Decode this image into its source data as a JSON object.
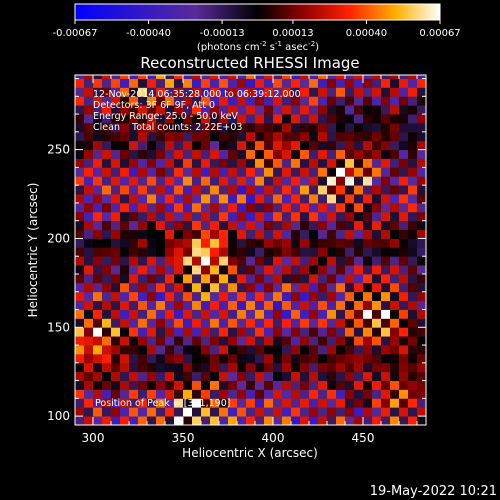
{
  "colorbar": {
    "ticks": [
      {
        "value": -0.00067,
        "label": "-0.00067"
      },
      {
        "value": -0.0004,
        "label": "-0.00040"
      },
      {
        "value": -0.00013,
        "label": "-0.00013"
      },
      {
        "value": 0.00013,
        "label": "0.00013"
      },
      {
        "value": 0.0004,
        "label": "0.00040"
      },
      {
        "value": 0.00067,
        "label": "0.00067"
      }
    ],
    "range": [
      -0.00067,
      0.00067
    ]
  },
  "chart_data": {
    "type": "heatmap",
    "title": "Reconstructed RHESSI Image",
    "xlabel": "Heliocentric X (arcsec)",
    "ylabel": "Heliocentric Y (arcsec)",
    "xlim": [
      290,
      485
    ],
    "ylim": [
      95,
      292
    ],
    "xticks": [
      300,
      350,
      400,
      450
    ],
    "yticks": [
      100,
      150,
      200,
      250
    ],
    "grid": false,
    "annotations": [
      "12-Nov-2014 06:35:28.000 to 06:39:12.000",
      "Detectors: 3F 6F 9F, Att 0",
      "Energy Range: 25.0 - 50.0 keV",
      "Clean    Total counts: 2.22E+03"
    ],
    "peak_label": "Position of Peak = [361,190]",
    "peak": [
      361,
      190
    ],
    "footer_date": "19-May-2022 10:21",
    "bright_regions": [
      {
        "x": 361,
        "y": 190,
        "value": 0.00067
      },
      {
        "x": 455,
        "y": 155,
        "value": 0.00055
      },
      {
        "x": 300,
        "y": 142,
        "value": 0.0005
      },
      {
        "x": 440,
        "y": 235,
        "value": 0.00045
      },
      {
        "x": 355,
        "y": 105,
        "value": 0.00042
      },
      {
        "x": 400,
        "y": 250,
        "value": 0.00035
      },
      {
        "x": 330,
        "y": 275,
        "value": 0.0003
      },
      {
        "x": 470,
        "y": 110,
        "value": 0.0003
      }
    ]
  }
}
